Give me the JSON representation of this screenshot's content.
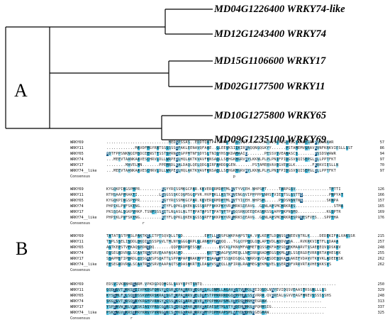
{
  "panel_a": {
    "label": "A",
    "leaves": [
      "MD04G1226400 WRKY74-like",
      "MD12G1243400 WRKY74",
      "MD15G1106600 WRKY17",
      "MD02G1177500 WRKY11",
      "MD10G1275800 WRKY65",
      "MD09G1235100 WRKY69"
    ]
  },
  "panel_b": {
    "label": "B",
    "consensus_label": "Consensus",
    "blocks": [
      {
        "rows": [
          {
            "name": "WRKY69",
            "seq": "..........................MEDSPSSAS..EDDTQATP..LPKK..KRGVQ........KRVVSVPIGDVEGSKRGEGRPPSDSWAWR",
            "num": "57"
          },
          {
            "name": "WRKY11",
            "seq": "............MAVDFMGYRNTSSSSSSIFAKLEENAVQFAAE..GLEEVKSIIKIRAAQQNGQGKYY......PSTAMEMVGRAVAVNFKRKVIESLLSST",
            "num": "86"
          },
          {
            "name": "WRKY65",
            "seq": "MDTFPPSNKNQIMSDCEENSTTSSTSPRNSEGPPMTNFSDYSLTNIGYHSSKDAMAAIQ.......PESSVSVEANASCS.......PSSDSWAWR",
            "num": "94"
          },
          {
            "name": "WRKY74",
            "seq": "...MEEVTAANKAAVESCHRVLDLLWRPEDLHQLAKTKVAVFKNSAQLLSEHGKHGRVWYLKKNLPLPLPNIFPIDGSVSQISEPGLQLLPPTFKT",
            "num": "97"
          },
          {
            "name": "WRKY17",
            "seq": "........MAVELMN.......PPEMRDLKALDAQLQELQDGSIRFAHDDGGEN.......PSTAMERVAVEGVEVGLK.......FKRKVIESLLN",
            "num": "70"
          },
          {
            "name": "WRKY74__like",
            "seq": "...MEEVTAANKAAVESCHRVLDLLWRPEDLHQLAKTKVAVFKNSAQLLSEHGKHGRVWYLKKNLPLPLPNIFPIDGSVSQISEPGLQLLPPTFKT",
            "num": "97"
          }
        ],
        "consensus": "                                                     p"
      },
      {
        "rows": [
          {
            "name": "WRKY69",
            "seq": "KYGQKPIKGSPHPR.........RGYYRCSSMKGCPAR.KKVERCRMDPTMLVVTYVCEH.NHPSPT.....TARPGSV..............TPTTI",
            "num": "126"
          },
          {
            "name": "WRKY11",
            "seq": "RTHSAAPPRAKTI.........LSSGSSSKCQGMSGCPVR.HVPEKLLKSTKKVENGSVIPPPPPLNHSTVIESTSLGSTTQ...........PNPYAT",
            "num": "166"
          },
          {
            "name": "WRKY65",
            "seq": "KYGQKPIKGSPYPR.........RGYYRCSSMKGCPAR.KQVERCRMDPTMLVVTYICEH.NHPSPL.....PSDSNSNTNN..........SKNPA",
            "num": "157"
          },
          {
            "name": "WRKY74",
            "seq": "PHPIKLPVFSKTNG.........KTYFLQPKLQKEKSGSSSRFFSKKPKYVREMRKSIEAVG..GINLAPSMCHRKRES................STMA",
            "num": "165"
          },
          {
            "name": "WRKY17",
            "seq": "PKSSQALSGKPVHKP.TSNPSSSQITLNLASLNLTTPPATAPSTTPATVFTPTSQSRKQEEDEASKRSSLAPPSKPNSMQ............KGSPTR",
            "num": "169"
          },
          {
            "name": "WRKY74__like",
            "seq": "PHPIKLPVFSKTNG.........KTYFLQPKLQKEKSGSSSRFFSKKPKYVREMRKSIEAVG..GINLAPSMCHRKRESPAKESFVES...SPPTHA",
            "num": "176"
          }
        ],
        "consensus": "               r"
      },
      {
        "rows": [
          {
            "name": "WRKY69",
            "seq": "TATATSSTPRSLPAKTKELITPTSQVDLLTGD.........EPTLLSDSPGWKPAAPSTLA.VVLKEPTLDQNSSSNEEVATRLK....DEDEKIFALVAKSSR",
            "num": "215"
          },
          {
            "name": "WRKY11",
            "seq": "TSPLSSELISDDLDKQIMSSSPGVLTMLNYGGGGQRPLGLANKPPGVQQQ...TGLQYPQQLQDLAPTVDLADDVTSA...RVKRKVIETFLLDAAA",
            "num": "257"
          },
          {
            "name": "WRKY65",
            "seq": "AGTKEPSTVFKAQSPDNQDQ.......QQPPRDMSESSNE.......KVCKLPKNVMFADMETEQSSPKFAFPSDDEKMAARVTSSAEEEQVIDSKRV",
            "num": "248"
          },
          {
            "name": "WRKY74",
            "seq": "EQSEGRDVRGLSCAATRGVSRVEAAPAQASPD..........KRTTLDAGPVSMEQLLNFIRRLRADMEGSEKMLVELSSERGDFVRRVRTAVHESKK",
            "num": "255"
          },
          {
            "name": "WRKY17",
            "seq": "SSAPMSTIPDRDLCDSGRVSPSQATTLSPPAPAPHNAKPPPTESAATPTSSSKDSDGLYKRRVSVIAESDESQKAGLAKEFVDAVVTKVVKLADEEKSK",
            "num": "262"
          },
          {
            "name": "WRKY74__like",
            "seq": "EESEGRDVRGLSCAATRGVSRVEAAPAQTSPDASNKRTTLDAGPVSMEQLLNFIRRLRADMEGSEKMLVELSSERGDFVRRVRTAVHESKKSVS",
            "num": "262"
          }
        ],
        "consensus": "    "
      },
      {
        "rows": [
          {
            "name": "WRKY69",
            "seq": "EDSVIVKRNHRSNRM.VPKDGDQQHGSLSAVYQPYTSNTQ........................................................",
            "num": "250"
          },
          {
            "name": "WRKY11",
            "seq": "GQDTGVTKRKSGIIVPKDGFQRGYRCGRRCPARRRVEEGHDLALQNMLLAGAVESTVRPQLGEIQGDLNAYEVIDQSVEAASTRSGNLLLGS",
            "num": "329"
          },
          {
            "name": "WRKY65",
            "seq": "KYSSMLFKLSQQDSSKVPKRSKRAQSGTRKPARRRVEELDYFSTPPRRRRDGQSPPHPLSSDVRRR.QVRREALGGVVEAGFHNEVSSSSSSHS",
            "num": "248"
          },
          {
            "name": "WRKY74",
            "seq": "SKGNGVTKRSQPRYKRGYPVRNGYKCSSYKGCPARKRRVEMYPQPHKAPSMLVTYDSQHNHGEGRAW.......................",
            "num": "313"
          },
          {
            "name": "WRKY17",
            "seq": "YSPEAVWKRLVPKSKIASYPRGCGYRCSSIKGCPARKRRVEAEAESPTMLVTYEDEHNHKGEPQHHSIG.......................",
            "num": "337"
          },
          {
            "name": "WRKY74__like",
            "seq": "PSKGNGVTKRSQPRYKRGYPVRNGYKCSSYKGCPARKRRVEMYPQPHKAPSMLVTYDSQHNHGEGRAW.......................",
            "num": "325"
          }
        ],
        "consensus": "          r"
      }
    ]
  }
}
